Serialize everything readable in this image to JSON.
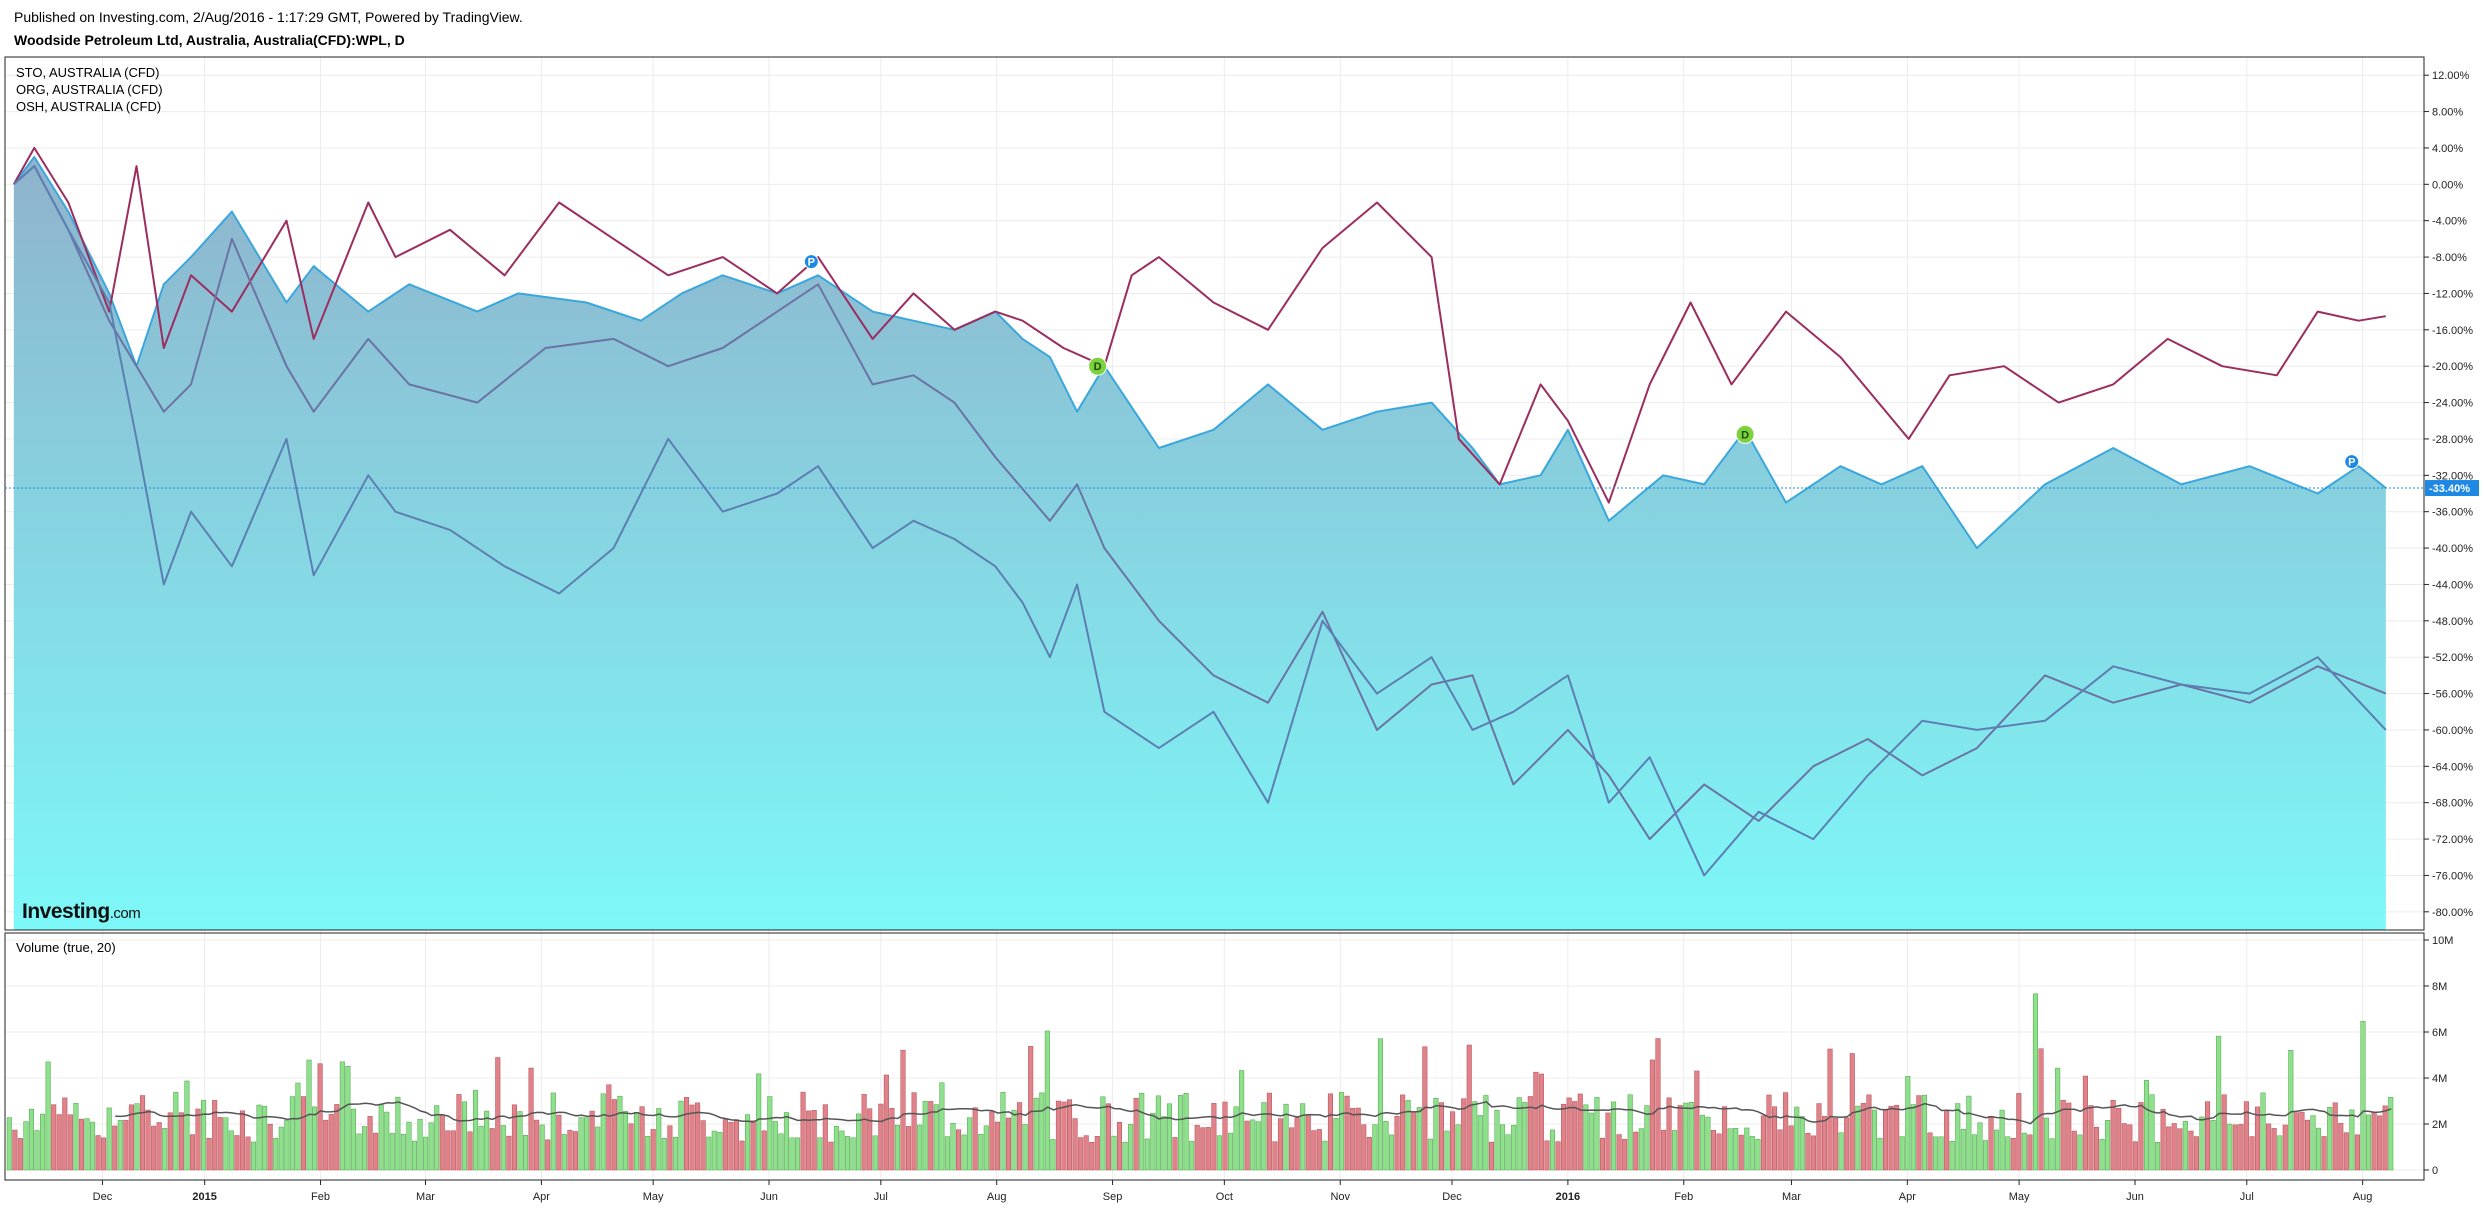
{
  "header": {
    "published": "Published on Investing.com, 2/Aug/2016 - 1:17:29 GMT, Powered by TradingView.",
    "title": "Woodside Petroleum Ltd, Australia, Australia(CFD):WPL, D"
  },
  "legend": {
    "items": [
      "STO, AUSTRALIA (CFD)",
      "ORG, AUSTRALIA (CFD)",
      "OSH, AUSTRALIA (CFD)"
    ]
  },
  "logo": {
    "brand": "Investing",
    "suffix": ".com"
  },
  "volume_label": "Volume (true, 20)",
  "colors": {
    "wpl_line": "#3aa7dc",
    "area_top": "#8fb3cc",
    "area_bottom": "#7df8f8",
    "org_line": "#9b2d5f",
    "sto_line": "#6a74a4",
    "osh_line": "#5b7fb2",
    "vol_up": "#8fe08c",
    "vol_down": "#e0828a",
    "vol_ma": "#555555",
    "price_tag": "#1e88e5"
  },
  "chart_data": [
    {
      "type": "line",
      "title": "Woodside Petroleum Ltd, Australia, Australia(CFD):WPL, D",
      "x_ticks": [
        "Dec",
        "2015",
        "Feb",
        "Mar",
        "Apr",
        "May",
        "Jun",
        "Jul",
        "Aug",
        "Sep",
        "Oct",
        "Nov",
        "Dec",
        "2016",
        "Feb",
        "Mar",
        "Apr",
        "May",
        "Jun",
        "Jul",
        "Aug"
      ],
      "y_ticks": [
        "12.00%",
        "8.00%",
        "4.00%",
        "0.00%",
        "-4.00%",
        "-8.00%",
        "-12.00%",
        "-16.00%",
        "-20.00%",
        "-24.00%",
        "-28.00%",
        "-32.00%",
        "-36.00%",
        "-40.00%",
        "-44.00%",
        "-48.00%",
        "-52.00%",
        "-56.00%",
        "-60.00%",
        "-64.00%",
        "-68.00%",
        "-72.00%",
        "-76.00%",
        "-80.00%"
      ],
      "ylim": [
        -82,
        14
      ],
      "last_value_label": "-33.40%",
      "markers": [
        {
          "label": "P",
          "x": 2015.445,
          "y": -8.5
        },
        {
          "label": "D",
          "x": 2015.655,
          "y": -20
        },
        {
          "label": "D",
          "x": 2016.13,
          "y": -27.5
        },
        {
          "label": "P",
          "x": 2016.575,
          "y": -30.5
        }
      ],
      "series": [
        {
          "name": "WPL",
          "area": true,
          "x": [
            2014.86,
            2014.875,
            2014.9,
            2014.93,
            2014.95,
            2014.97,
            2014.99,
            2015.02,
            2015.06,
            2015.08,
            2015.12,
            2015.15,
            2015.2,
            2015.23,
            2015.28,
            2015.32,
            2015.35,
            2015.38,
            2015.42,
            2015.45,
            2015.49,
            2015.52,
            2015.55,
            2015.58,
            2015.6,
            2015.62,
            2015.64,
            2015.66,
            2015.7,
            2015.74,
            2015.78,
            2015.82,
            2015.86,
            2015.9,
            2015.93,
            2015.95,
            2015.98,
            2016.0,
            2016.03,
            2016.07,
            2016.1,
            2016.13,
            2016.16,
            2016.2,
            2016.23,
            2016.26,
            2016.3,
            2016.35,
            2016.4,
            2016.45,
            2016.5,
            2016.55,
            2016.58,
            2016.6
          ],
          "y": [
            0,
            3,
            -3,
            -12,
            -20,
            -11,
            -8,
            -3,
            -13,
            -9,
            -14,
            -11,
            -14,
            -12,
            -13,
            -15,
            -12,
            -10,
            -12,
            -10,
            -14,
            -15,
            -16,
            -14,
            -17,
            -19,
            -25,
            -20,
            -29,
            -27,
            -22,
            -27,
            -25,
            -24,
            -29,
            -33,
            -32,
            -27,
            -37,
            -32,
            -33,
            -27,
            -35,
            -31,
            -33,
            -31,
            -40,
            -33,
            -29,
            -33,
            -31,
            -34,
            -31,
            -33.4
          ]
        },
        {
          "name": "ORG",
          "x": [
            2014.86,
            2014.875,
            2014.9,
            2014.93,
            2014.95,
            2014.97,
            2014.99,
            2015.02,
            2015.06,
            2015.08,
            2015.12,
            2015.14,
            2015.18,
            2015.22,
            2015.26,
            2015.3,
            2015.34,
            2015.38,
            2015.42,
            2015.45,
            2015.49,
            2015.52,
            2015.55,
            2015.58,
            2015.6,
            2015.63,
            2015.66,
            2015.68,
            2015.7,
            2015.74,
            2015.78,
            2015.82,
            2015.86,
            2015.88,
            2015.9,
            2015.92,
            2015.95,
            2015.98,
            2016.0,
            2016.03,
            2016.06,
            2016.09,
            2016.12,
            2016.16,
            2016.2,
            2016.25,
            2016.28,
            2016.32,
            2016.36,
            2016.4,
            2016.44,
            2016.48,
            2016.52,
            2016.55,
            2016.58,
            2016.6
          ],
          "y": [
            0,
            4,
            -2,
            -14,
            2,
            -18,
            -10,
            -14,
            -4,
            -17,
            -2,
            -8,
            -5,
            -10,
            -2,
            -6,
            -10,
            -8,
            -12,
            -8,
            -17,
            -12,
            -16,
            -14,
            -15,
            -18,
            -20,
            -10,
            -8,
            -13,
            -16,
            -7,
            -2,
            -5,
            -8,
            -28,
            -33,
            -22,
            -26,
            -35,
            -22,
            -13,
            -22,
            -14,
            -19,
            -28,
            -21,
            -20,
            -24,
            -22,
            -17,
            -20,
            -21,
            -14,
            -15,
            -14.5
          ]
        },
        {
          "name": "STO",
          "x": [
            2014.86,
            2014.875,
            2014.9,
            2014.93,
            2014.95,
            2014.97,
            2014.99,
            2015.02,
            2015.06,
            2015.08,
            2015.12,
            2015.15,
            2015.2,
            2015.25,
            2015.3,
            2015.34,
            2015.38,
            2015.42,
            2015.45,
            2015.49,
            2015.52,
            2015.55,
            2015.58,
            2015.62,
            2015.64,
            2015.66,
            2015.7,
            2015.74,
            2015.78,
            2015.82,
            2015.86,
            2015.9,
            2015.93,
            2015.96,
            2016.0,
            2016.03,
            2016.06,
            2016.1,
            2016.14,
            2016.18,
            2016.22,
            2016.26,
            2016.3,
            2016.35,
            2016.4,
            2016.45,
            2016.5,
            2016.55,
            2016.6
          ],
          "y": [
            0,
            2,
            -5,
            -15,
            -20,
            -25,
            -22,
            -6,
            -20,
            -25,
            -17,
            -22,
            -24,
            -18,
            -17,
            -20,
            -18,
            -14,
            -11,
            -22,
            -21,
            -24,
            -30,
            -37,
            -33,
            -40,
            -48,
            -54,
            -57,
            -47,
            -60,
            -55,
            -54,
            -66,
            -60,
            -65,
            -72,
            -66,
            -70,
            -64,
            -61,
            -65,
            -62,
            -54,
            -57,
            -55,
            -57,
            -53,
            -56
          ]
        },
        {
          "name": "OSH",
          "x": [
            2014.86,
            2014.875,
            2014.9,
            2014.93,
            2014.95,
            2014.97,
            2014.99,
            2015.02,
            2015.06,
            2015.08,
            2015.12,
            2015.14,
            2015.18,
            2015.22,
            2015.26,
            2015.3,
            2015.34,
            2015.38,
            2015.42,
            2015.45,
            2015.49,
            2015.52,
            2015.55,
            2015.58,
            2015.6,
            2015.62,
            2015.64,
            2015.66,
            2015.7,
            2015.74,
            2015.78,
            2015.82,
            2015.86,
            2015.9,
            2015.93,
            2015.96,
            2016.0,
            2016.03,
            2016.06,
            2016.1,
            2016.14,
            2016.18,
            2016.22,
            2016.26,
            2016.3,
            2016.35,
            2016.4,
            2016.45,
            2016.5,
            2016.55,
            2016.6
          ],
          "y": [
            0,
            2,
            -5,
            -13,
            -28,
            -44,
            -36,
            -42,
            -28,
            -43,
            -32,
            -36,
            -38,
            -42,
            -45,
            -40,
            -28,
            -36,
            -34,
            -31,
            -40,
            -37,
            -39,
            -42,
            -46,
            -52,
            -44,
            -58,
            -62,
            -58,
            -68,
            -48,
            -56,
            -52,
            -60,
            -58,
            -54,
            -68,
            -63,
            -76,
            -69,
            -72,
            -65,
            -59,
            -60,
            -59,
            -53,
            -55,
            -56,
            -52,
            -60
          ]
        }
      ]
    },
    {
      "type": "bar",
      "title": "Volume (true, 20)",
      "y_ticks": [
        "10M",
        "8M",
        "6M",
        "4M",
        "2M",
        "0"
      ],
      "ylim": [
        0,
        10
      ],
      "unit": "M",
      "seed": 7,
      "ma_period": 20,
      "bar_count": 430
    }
  ]
}
